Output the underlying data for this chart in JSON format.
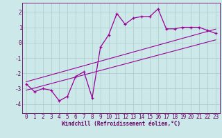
{
  "xlabel": "Windchill (Refroidissement éolien,°C)",
  "hours": [
    0,
    1,
    2,
    3,
    4,
    5,
    6,
    7,
    8,
    9,
    10,
    11,
    12,
    13,
    14,
    15,
    16,
    17,
    18,
    19,
    20,
    21,
    22,
    23
  ],
  "temperature": [
    -2.7,
    -3.2,
    -3.0,
    -3.1,
    -3.8,
    -3.5,
    -2.2,
    -1.9,
    -3.6,
    -0.3,
    0.5,
    1.9,
    1.2,
    1.6,
    1.7,
    1.7,
    2.2,
    0.9,
    0.9,
    1.0,
    1.0,
    1.0,
    0.8,
    0.6
  ],
  "upper_line_x": [
    0,
    23
  ],
  "upper_line_y": [
    -2.55,
    0.88
  ],
  "lower_line_x": [
    0,
    23
  ],
  "lower_line_y": [
    -3.1,
    0.18
  ],
  "line_color": "#990099",
  "bg_color": "#cce8e8",
  "grid_color": "#aacccc",
  "axis_color": "#660066",
  "text_color": "#660066",
  "ylim": [
    -4.6,
    2.6
  ],
  "xlim": [
    -0.5,
    23.5
  ],
  "yticks": [
    -4,
    -3,
    -2,
    -1,
    0,
    1,
    2
  ],
  "xticks": [
    0,
    1,
    2,
    3,
    4,
    5,
    6,
    7,
    8,
    9,
    10,
    11,
    12,
    13,
    14,
    15,
    16,
    17,
    18,
    19,
    20,
    21,
    22,
    23
  ],
  "tick_fontsize": 5.5,
  "xlabel_fontsize": 5.5
}
